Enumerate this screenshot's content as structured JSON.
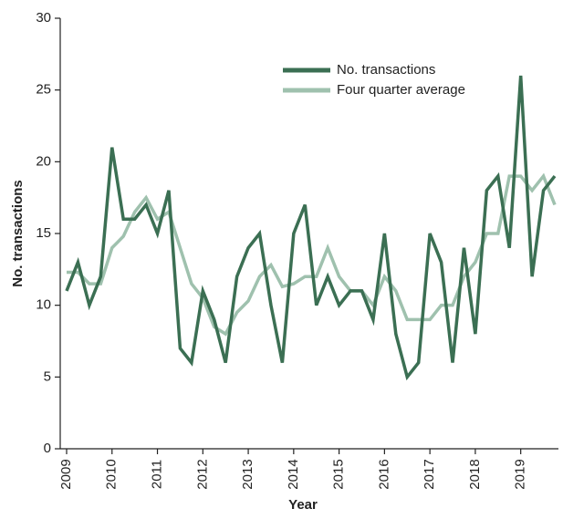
{
  "chart_data": {
    "type": "line",
    "x_label": "Year",
    "y_label": "No. transactions",
    "x": [
      2009,
      2009.25,
      2009.5,
      2009.75,
      2010,
      2010.25,
      2010.5,
      2010.75,
      2011,
      2011.25,
      2011.5,
      2011.75,
      2012,
      2012.25,
      2012.5,
      2012.75,
      2013,
      2013.25,
      2013.5,
      2013.75,
      2014,
      2014.25,
      2014.5,
      2014.75,
      2015,
      2015.25,
      2015.5,
      2015.75,
      2016,
      2016.25,
      2016.5,
      2016.75,
      2017,
      2017.25,
      2017.5,
      2017.75,
      2018,
      2018.25,
      2018.5,
      2018.75,
      2019,
      2019.25,
      2019.5,
      2019.75
    ],
    "series": [
      {
        "name": "No. transactions",
        "color": "#3b6f53",
        "values": [
          11,
          13,
          10,
          12,
          21,
          16,
          16,
          17,
          15,
          18,
          7,
          6,
          11,
          9,
          6,
          12,
          14,
          15,
          10,
          6,
          15,
          17,
          10,
          12,
          10,
          11,
          11,
          9,
          15,
          8,
          5,
          6,
          15,
          13,
          6,
          14,
          8,
          18,
          19,
          14,
          26,
          12,
          18,
          19
        ]
      },
      {
        "name": "Four quarter average",
        "color": "#9fc1ae",
        "values": [
          12.3,
          12.3,
          11.5,
          11.5,
          14,
          14.8,
          16.5,
          17.5,
          16,
          16.5,
          14,
          11.5,
          10.5,
          8.5,
          8,
          9.5,
          10.3,
          12,
          12.8,
          11.3,
          11.5,
          12,
          12,
          14,
          12,
          11,
          11,
          10,
          12,
          11,
          9,
          9,
          9,
          10,
          10,
          12,
          13,
          15,
          15,
          19,
          19,
          18,
          19,
          17
        ]
      }
    ],
    "xlim": [
      2009,
      2019.75
    ],
    "xticks": [
      2009,
      2010,
      2011,
      2012,
      2013,
      2014,
      2015,
      2016,
      2017,
      2018,
      2019
    ],
    "ylim": [
      0,
      30
    ],
    "yticks": [
      0,
      5,
      10,
      15,
      20,
      25,
      30
    ],
    "grid": false,
    "legend": "upper right"
  }
}
